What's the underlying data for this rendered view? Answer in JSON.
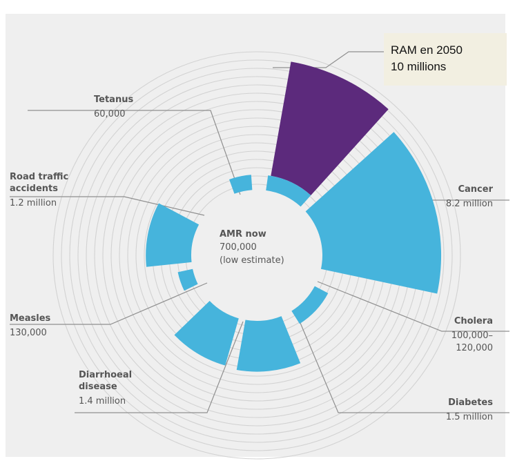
{
  "chart_data": {
    "type": "radial-bar",
    "unit": "deaths per year",
    "center": {
      "label": "AMR now",
      "value_text": "700,000",
      "note": "(low estimate)",
      "value": 700000
    },
    "callout": {
      "line1": "RAM en 2050",
      "line2": "10 millions"
    },
    "series": [
      {
        "name": "AMR in 2050",
        "label": "",
        "value_text": "",
        "value": 10000000,
        "color": "#5c2a7c"
      },
      {
        "name": "Cancer",
        "label": "Cancer",
        "value_text": "8.2 million",
        "value": 8200000,
        "color": "#46b4dc"
      },
      {
        "name": "Cholera",
        "label": "Cholera",
        "value_text": "100,000–\n120,000",
        "value": 120000,
        "color": "#46b4dc"
      },
      {
        "name": "Diabetes",
        "label": "Diabetes",
        "value_text": "1.5 million",
        "value": 1500000,
        "color": "#46b4dc"
      },
      {
        "name": "Diarrhoeal disease",
        "label": "Diarrhoeal\ndisease",
        "value_text": "1.4 million",
        "value": 1400000,
        "color": "#46b4dc"
      },
      {
        "name": "Measles",
        "label": "Measles",
        "value_text": "130,000",
        "value": 130000,
        "color": "#46b4dc"
      },
      {
        "name": "Road traffic accidents",
        "label": "Road traffic\naccidents",
        "value_text": "1.2 million",
        "value": 1200000,
        "color": "#46b4dc"
      },
      {
        "name": "Tetanus",
        "label": "Tetanus",
        "value_text": "60,000",
        "value": 60000,
        "color": "#46b4dc"
      },
      {
        "name": "AMR now",
        "label": "",
        "value_text": "",
        "value": 700000,
        "color": "#46b4dc"
      }
    ],
    "grid": true
  }
}
